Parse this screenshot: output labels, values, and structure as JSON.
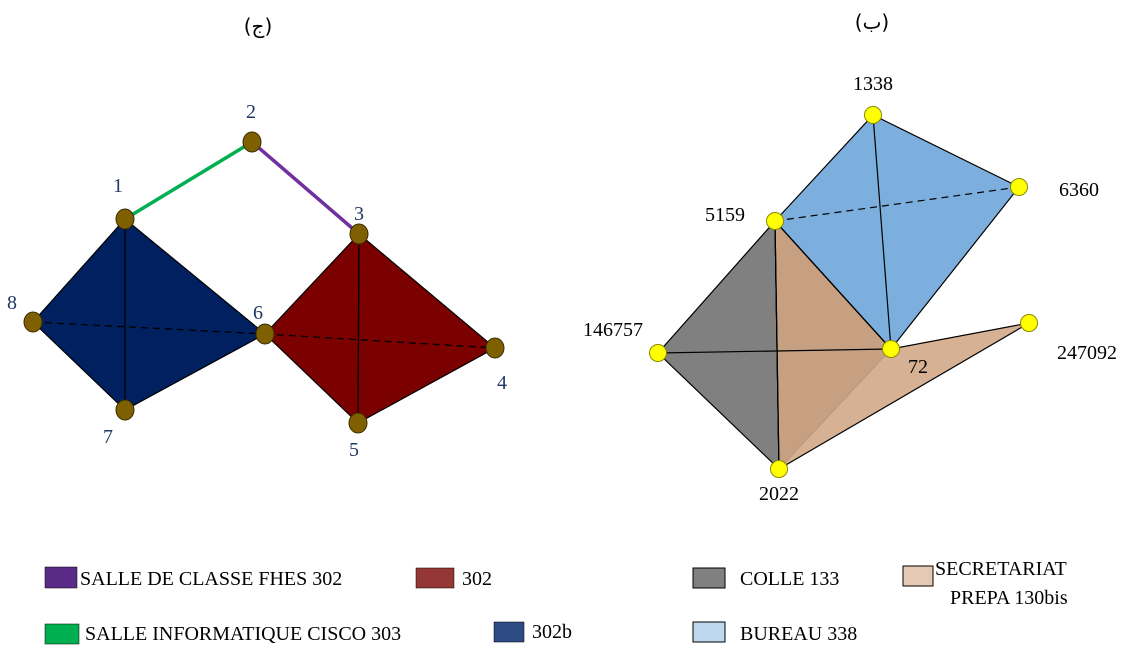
{
  "left_panel": {
    "title": "(ج)",
    "nodes": [
      {
        "id": "1",
        "label": "1"
      },
      {
        "id": "2",
        "label": "2"
      },
      {
        "id": "3",
        "label": "3"
      },
      {
        "id": "4",
        "label": "4"
      },
      {
        "id": "5",
        "label": "5"
      },
      {
        "id": "6",
        "label": "6"
      },
      {
        "id": "7",
        "label": "7"
      },
      {
        "id": "8",
        "label": "8"
      }
    ],
    "edges": [
      {
        "from": "1",
        "to": "2",
        "style": "solid",
        "color": "#00b050"
      },
      {
        "from": "2",
        "to": "3",
        "style": "solid",
        "color": "#7030a0"
      },
      {
        "from": "1",
        "to": "7",
        "style": "solid",
        "color": "#000000"
      },
      {
        "from": "8",
        "to": "6",
        "style": "dashed",
        "color": "#000000"
      },
      {
        "from": "3",
        "to": "5",
        "style": "solid",
        "color": "#000000"
      },
      {
        "from": "6",
        "to": "4",
        "style": "dashed",
        "color": "#000000"
      }
    ],
    "faces": [
      {
        "nodes": [
          "1",
          "6",
          "7",
          "8"
        ],
        "color": "#002060"
      },
      {
        "nodes": [
          "3",
          "4",
          "5",
          "6"
        ],
        "color": "#7b0000"
      }
    ],
    "node_color": "#7f6000",
    "label_color": "#1f3864"
  },
  "right_panel": {
    "title": "(ب)",
    "nodes": [
      {
        "id": "1338",
        "label": "1338"
      },
      {
        "id": "6360",
        "label": "6360"
      },
      {
        "id": "5159",
        "label": "5159"
      },
      {
        "id": "146757",
        "label": "146757"
      },
      {
        "id": "72",
        "label": "72"
      },
      {
        "id": "247092",
        "label": "247092"
      },
      {
        "id": "2022",
        "label": "2022"
      }
    ],
    "faces": [
      {
        "nodes": [
          "5159",
          "146757",
          "2022"
        ],
        "color": "#808080"
      },
      {
        "nodes": [
          "5159",
          "72",
          "2022"
        ],
        "color": "#635142"
      },
      {
        "nodes": [
          "5159",
          "72",
          "247092",
          "2022"
        ],
        "color": "#d2a888",
        "opacity": 0.9
      },
      {
        "nodes": [
          "5159",
          "1338",
          "6360",
          "72"
        ],
        "color": "#5b9bd5",
        "opacity": 0.8
      }
    ],
    "edges": [
      {
        "from": "1338",
        "to": "72",
        "style": "solid"
      },
      {
        "from": "5159",
        "to": "6360",
        "style": "dashed"
      },
      {
        "from": "146757",
        "to": "72",
        "style": "solid"
      },
      {
        "from": "5159",
        "to": "2022",
        "style": "solid"
      },
      {
        "from": "5159",
        "to": "72",
        "style": "solid"
      }
    ],
    "node_color": "#ffff00"
  },
  "legend_left": [
    {
      "label": "SALLE DE CLASSE FHES 302",
      "color": "#5b2a86"
    },
    {
      "label": "302",
      "color": "#953735"
    },
    {
      "label": "SALLE INFORMATIQUE CISCO 303",
      "color": "#00b050"
    },
    {
      "label": "302b",
      "color": "#2e4b86"
    }
  ],
  "legend_right": [
    {
      "label": "COLLE 133",
      "color": "#808080"
    },
    {
      "label": "SECRETARIAT",
      "label2": "PREPA 130bis",
      "color": "#e6c9b4"
    },
    {
      "label": "BUREAU 338",
      "color": "#bdd7ee"
    }
  ]
}
